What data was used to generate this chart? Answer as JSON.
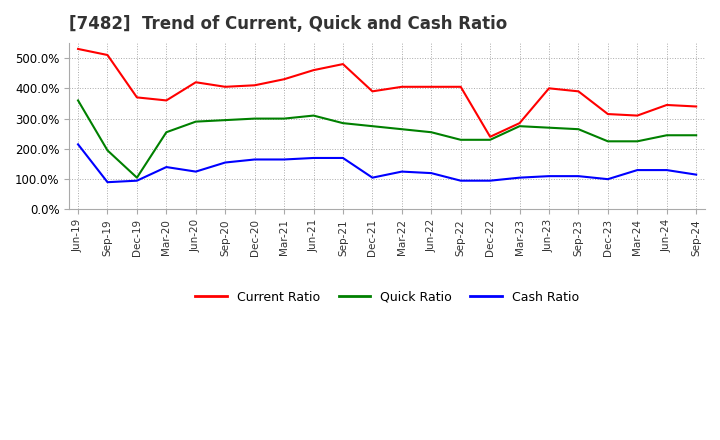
{
  "title": "[7482]  Trend of Current, Quick and Cash Ratio",
  "title_fontsize": 12,
  "labels": [
    "Jun-19",
    "Sep-19",
    "Dec-19",
    "Mar-20",
    "Jun-20",
    "Sep-20",
    "Dec-20",
    "Mar-21",
    "Jun-21",
    "Sep-21",
    "Dec-21",
    "Mar-22",
    "Jun-22",
    "Sep-22",
    "Dec-22",
    "Mar-23",
    "Jun-23",
    "Sep-23",
    "Dec-23",
    "Mar-24",
    "Jun-24",
    "Sep-24"
  ],
  "current_ratio": [
    530,
    510,
    370,
    360,
    420,
    405,
    410,
    430,
    460,
    480,
    390,
    405,
    405,
    405,
    240,
    285,
    400,
    390,
    315,
    310,
    345,
    340
  ],
  "quick_ratio": [
    360,
    195,
    105,
    255,
    290,
    295,
    300,
    300,
    310,
    285,
    275,
    265,
    255,
    230,
    230,
    275,
    270,
    265,
    225,
    225,
    245,
    245
  ],
  "cash_ratio": [
    215,
    90,
    95,
    140,
    125,
    155,
    165,
    165,
    170,
    170,
    105,
    125,
    120,
    95,
    95,
    105,
    110,
    110,
    100,
    130,
    130,
    115
  ],
  "current_color": "#ff0000",
  "quick_color": "#008000",
  "cash_color": "#0000ff",
  "ylim": [
    0,
    550
  ],
  "ytick_values": [
    0,
    100,
    200,
    300,
    400,
    500
  ],
  "ytick_labels": [
    "0.0%",
    "100.0%",
    "200.0%",
    "300.0%",
    "400.0%",
    "500.0%"
  ],
  "background_color": "#ffffff",
  "grid_color": "#aaaaaa",
  "legend_labels": [
    "Current Ratio",
    "Quick Ratio",
    "Cash Ratio"
  ]
}
